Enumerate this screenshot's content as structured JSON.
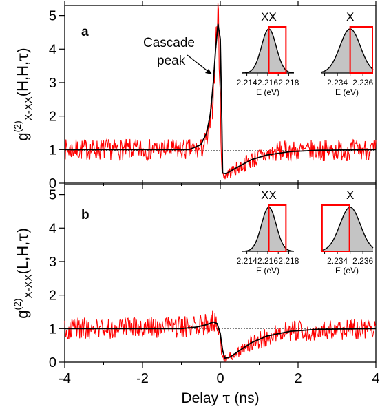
{
  "chart_data": [
    {
      "type": "line",
      "panel_label": "a",
      "ylabel": {
        "g": "g",
        "sup": "(2)",
        "sub": "X-XX",
        "args_open": "(H,H,",
        "tau": "τ",
        "args_close": ")"
      },
      "ylim": [
        0,
        5.3
      ],
      "yticks": [
        "0",
        "1",
        "2",
        "3",
        "4",
        "5"
      ],
      "xlim": [
        -4,
        4
      ],
      "reference_line": 1,
      "annotation": {
        "line1": "Cascade",
        "line2": "peak"
      },
      "series": [
        {
          "color": "#ff0000",
          "style": "noisy",
          "points": [
            [
              -4.0,
              1.0
            ],
            [
              -0.5,
              1.0
            ],
            [
              -0.3,
              1.4
            ],
            [
              -0.2,
              2.4
            ],
            [
              -0.12,
              4.2
            ],
            [
              -0.05,
              5.1
            ],
            [
              0.0,
              2.2
            ],
            [
              0.05,
              0.2
            ],
            [
              0.3,
              0.35
            ],
            [
              0.8,
              0.7
            ],
            [
              1.5,
              0.95
            ],
            [
              4.0,
              1.0
            ]
          ]
        },
        {
          "color": "#000000",
          "style": "fit",
          "points": [
            [
              -4.0,
              1.0
            ],
            [
              -0.8,
              1.0
            ],
            [
              -0.5,
              1.15
            ],
            [
              -0.35,
              1.5
            ],
            [
              -0.25,
              2.1
            ],
            [
              -0.18,
              3.0
            ],
            [
              -0.12,
              4.0
            ],
            [
              -0.06,
              4.75
            ],
            [
              0.0,
              4.3
            ],
            [
              0.03,
              2.5
            ],
            [
              0.06,
              0.3
            ],
            [
              0.15,
              0.28
            ],
            [
              0.4,
              0.45
            ],
            [
              0.8,
              0.7
            ],
            [
              1.2,
              0.84
            ],
            [
              1.8,
              0.94
            ],
            [
              2.5,
              0.98
            ],
            [
              4.0,
              1.0
            ]
          ]
        }
      ],
      "insets": [
        {
          "label": "XX",
          "xlim": [
            2.2135,
            2.2185
          ],
          "xticks": [
            "2.214",
            "2.216",
            "2.218"
          ],
          "xlabel": "E (eV)",
          "peak": 2.2161,
          "width": 0.0007,
          "window": [
            2.2161,
            2.2178
          ]
        },
        {
          "label": "X",
          "xlim": [
            2.2327,
            2.2368
          ],
          "xticks": [
            "2.234",
            "2.236"
          ],
          "xlabel": "E (eV)",
          "peak": 2.235,
          "width": 0.0008,
          "window": [
            2.235,
            2.2368
          ]
        }
      ]
    },
    {
      "type": "line",
      "panel_label": "b",
      "ylabel": {
        "g": "g",
        "sup": "(2)",
        "sub": "X-XX",
        "args_open": "(L,H,",
        "tau": "τ",
        "args_close": ")"
      },
      "ylim": [
        0,
        5.3
      ],
      "yticks": [
        "0",
        "1",
        "2",
        "3",
        "4",
        "5"
      ],
      "xlim": [
        -4,
        4
      ],
      "xticks": [
        "-4",
        "-2",
        "0",
        "2",
        "4"
      ],
      "xlabel": {
        "text": "Delay ",
        "tau": "τ",
        "unit": " (ns)"
      },
      "reference_line": 1,
      "series": [
        {
          "color": "#ff0000",
          "style": "noisy",
          "points": [
            [
              -4.0,
              1.0
            ],
            [
              -0.6,
              1.05
            ],
            [
              -0.3,
              1.2
            ],
            [
              -0.1,
              1.25
            ],
            [
              0.0,
              0.7
            ],
            [
              0.05,
              0.1
            ],
            [
              0.3,
              0.2
            ],
            [
              0.8,
              0.55
            ],
            [
              1.5,
              0.9
            ],
            [
              4.0,
              1.0
            ]
          ]
        },
        {
          "color": "#000000",
          "style": "fit",
          "points": [
            [
              -4.0,
              1.0
            ],
            [
              -1.0,
              1.0
            ],
            [
              -0.6,
              1.05
            ],
            [
              -0.35,
              1.12
            ],
            [
              -0.18,
              1.2
            ],
            [
              -0.08,
              1.15
            ],
            [
              0.0,
              0.85
            ],
            [
              0.06,
              0.35
            ],
            [
              0.12,
              0.12
            ],
            [
              0.25,
              0.15
            ],
            [
              0.5,
              0.35
            ],
            [
              0.8,
              0.58
            ],
            [
              1.2,
              0.78
            ],
            [
              1.8,
              0.92
            ],
            [
              2.5,
              0.98
            ],
            [
              4.0,
              1.0
            ]
          ]
        }
      ],
      "insets": [
        {
          "label": "XX",
          "xlim": [
            2.2135,
            2.2185
          ],
          "xticks": [
            "2.214",
            "2.216",
            "2.218"
          ],
          "xlabel": "E (eV)",
          "peak": 2.2161,
          "width": 0.0007,
          "window": [
            2.2161,
            2.2178
          ]
        },
        {
          "label": "X",
          "xlim": [
            2.2327,
            2.2368
          ],
          "xticks": [
            "2.234",
            "2.236"
          ],
          "xlabel": "E (eV)",
          "peak": 2.235,
          "width": 0.0008,
          "window": [
            2.2328,
            2.235
          ]
        }
      ]
    }
  ]
}
